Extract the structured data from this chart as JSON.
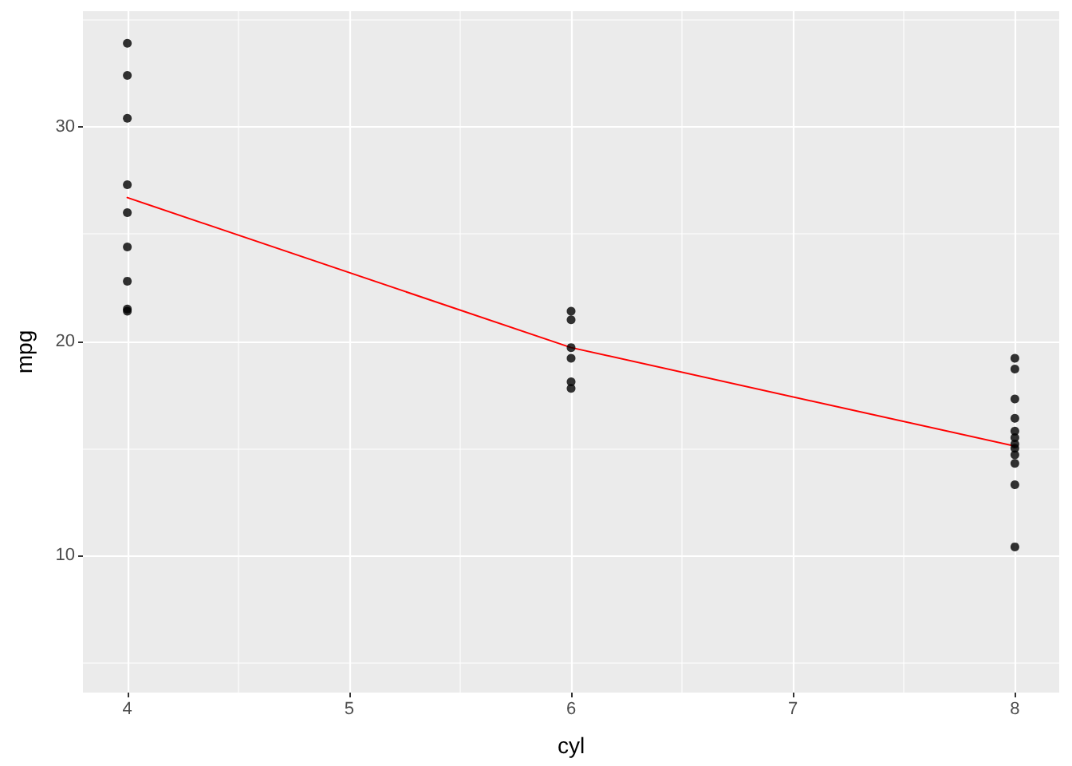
{
  "chart_data": {
    "type": "scatter",
    "xlabel": "cyl",
    "ylabel": "mpg",
    "xlim": [
      3.8,
      8.2
    ],
    "xticks": [
      4,
      5,
      6,
      7,
      8
    ],
    "ylim": [
      3.6,
      35.4
    ],
    "yticks": [
      10,
      20,
      30
    ],
    "grid": true,
    "marker": "circle",
    "series": [
      {
        "color": "#000000",
        "x": [
          4,
          4,
          4,
          4,
          4,
          4,
          4,
          4,
          4,
          6,
          6,
          6,
          6,
          6,
          6,
          8,
          8,
          8,
          8,
          8,
          8,
          8,
          8,
          8,
          8,
          8,
          8
        ],
        "values": [
          33.9,
          32.4,
          30.4,
          27.3,
          26.0,
          24.4,
          22.8,
          21.5,
          21.4,
          21.4,
          21.0,
          19.7,
          19.2,
          18.1,
          17.8,
          19.2,
          18.7,
          17.3,
          16.4,
          15.8,
          15.5,
          15.2,
          15.0,
          14.7,
          14.3,
          13.3,
          10.4
        ]
      },
      {
        "type": "line",
        "color": "#ff0000",
        "marker": "none",
        "x": [
          4,
          6,
          8
        ],
        "values": [
          26.7,
          19.7,
          15.1
        ]
      }
    ]
  }
}
